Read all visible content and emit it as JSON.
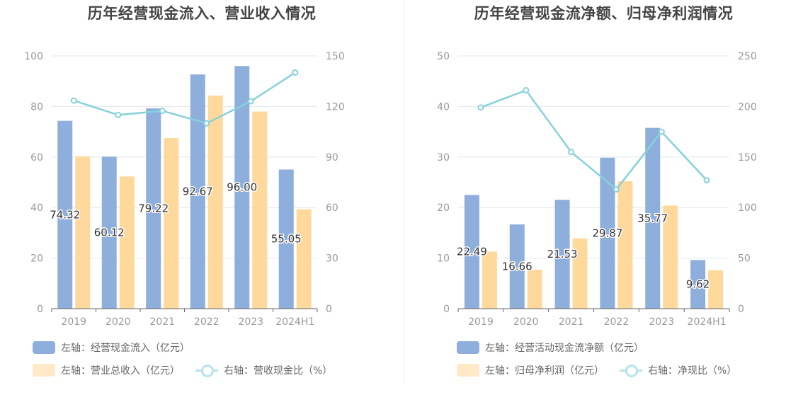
{
  "chart_data": [
    {
      "type": "bar",
      "title": "历年经营现金流入、营业收入情况",
      "categories": [
        "2019",
        "2020",
        "2021",
        "2022",
        "2023",
        "2024H1"
      ],
      "left_axis": {
        "min": 0,
        "max": 100,
        "ticks": [
          "0",
          "20",
          "40",
          "60",
          "80",
          "100"
        ]
      },
      "right_axis": {
        "min": 0,
        "max": 150,
        "ticks": [
          "0",
          "30",
          "60",
          "90",
          "120",
          "150"
        ]
      },
      "grid": true,
      "legend_position": "bottom-left",
      "series": [
        {
          "name": "左轴：经营现金流入（亿元）",
          "kind": "bar",
          "axis": "left",
          "color": "#8eaedb",
          "values": [
            74.32,
            60.12,
            79.22,
            92.67,
            96.0,
            55.05
          ],
          "labels": [
            "74.32",
            "60.12",
            "79.22",
            "92.67",
            "96.00",
            "55.05"
          ]
        },
        {
          "name": "左轴：营业总收入（亿元）",
          "kind": "bar",
          "axis": "left",
          "color": "#ffd99b",
          "values": [
            60.2,
            52.3,
            67.5,
            84.3,
            78.0,
            39.3
          ]
        },
        {
          "name": "右轴：营收现金比（%）",
          "kind": "line",
          "axis": "right",
          "color": "#86d2da",
          "values": [
            123.5,
            115.0,
            117.4,
            110.0,
            123.1,
            140.1
          ]
        }
      ]
    },
    {
      "type": "bar",
      "title": "历年经营现金流净额、归母净利润情况",
      "categories": [
        "2019",
        "2020",
        "2021",
        "2022",
        "2023",
        "2024H1"
      ],
      "left_axis": {
        "min": 0,
        "max": 50,
        "ticks": [
          "0",
          "10",
          "20",
          "30",
          "40",
          "50"
        ]
      },
      "right_axis": {
        "min": 0,
        "max": 250,
        "ticks": [
          "0",
          "50",
          "100",
          "150",
          "200",
          "250"
        ]
      },
      "grid": true,
      "legend_position": "bottom-left",
      "series": [
        {
          "name": "左轴：经营活动现金流净额（亿元）",
          "kind": "bar",
          "axis": "left",
          "color": "#8eaedb",
          "values": [
            22.49,
            16.66,
            21.53,
            29.87,
            35.77,
            9.62
          ],
          "labels": [
            "22.49",
            "16.66",
            "21.53",
            "29.87",
            "35.77",
            "9.62"
          ]
        },
        {
          "name": "左轴：归母净利润（亿元）",
          "kind": "bar",
          "axis": "left",
          "color": "#ffd99b",
          "values": [
            11.3,
            7.7,
            13.9,
            25.2,
            20.4,
            7.6
          ]
        },
        {
          "name": "右轴：净现比（%）",
          "kind": "line",
          "axis": "right",
          "color": "#86d2da",
          "values": [
            199.0,
            216.0,
            155.0,
            118.0,
            175.0,
            127.0
          ]
        }
      ]
    }
  ]
}
